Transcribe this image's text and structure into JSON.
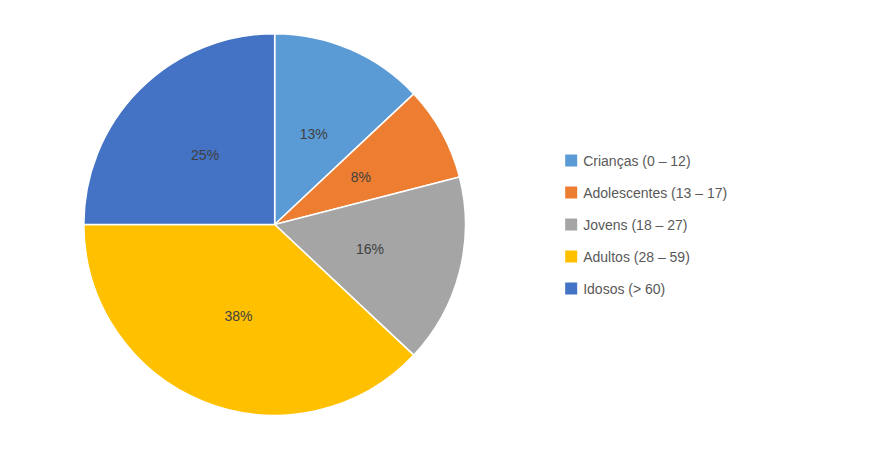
{
  "chart_data": {
    "type": "pie",
    "categories": [
      "Crianças (0 – 12)",
      "Adolescentes (13 – 17)",
      "Jovens (18 – 27)",
      "Adultos (28 – 59)",
      "Idosos (> 60)"
    ],
    "values": [
      13,
      8,
      16,
      38,
      25
    ],
    "value_labels": [
      "13%",
      "8%",
      "16%",
      "38%",
      "25%"
    ],
    "colors": [
      "#5B9BD5",
      "#ED7D31",
      "#A5A5A5",
      "#FFC000",
      "#4472C4"
    ],
    "data_labels": true,
    "legend": "right"
  }
}
